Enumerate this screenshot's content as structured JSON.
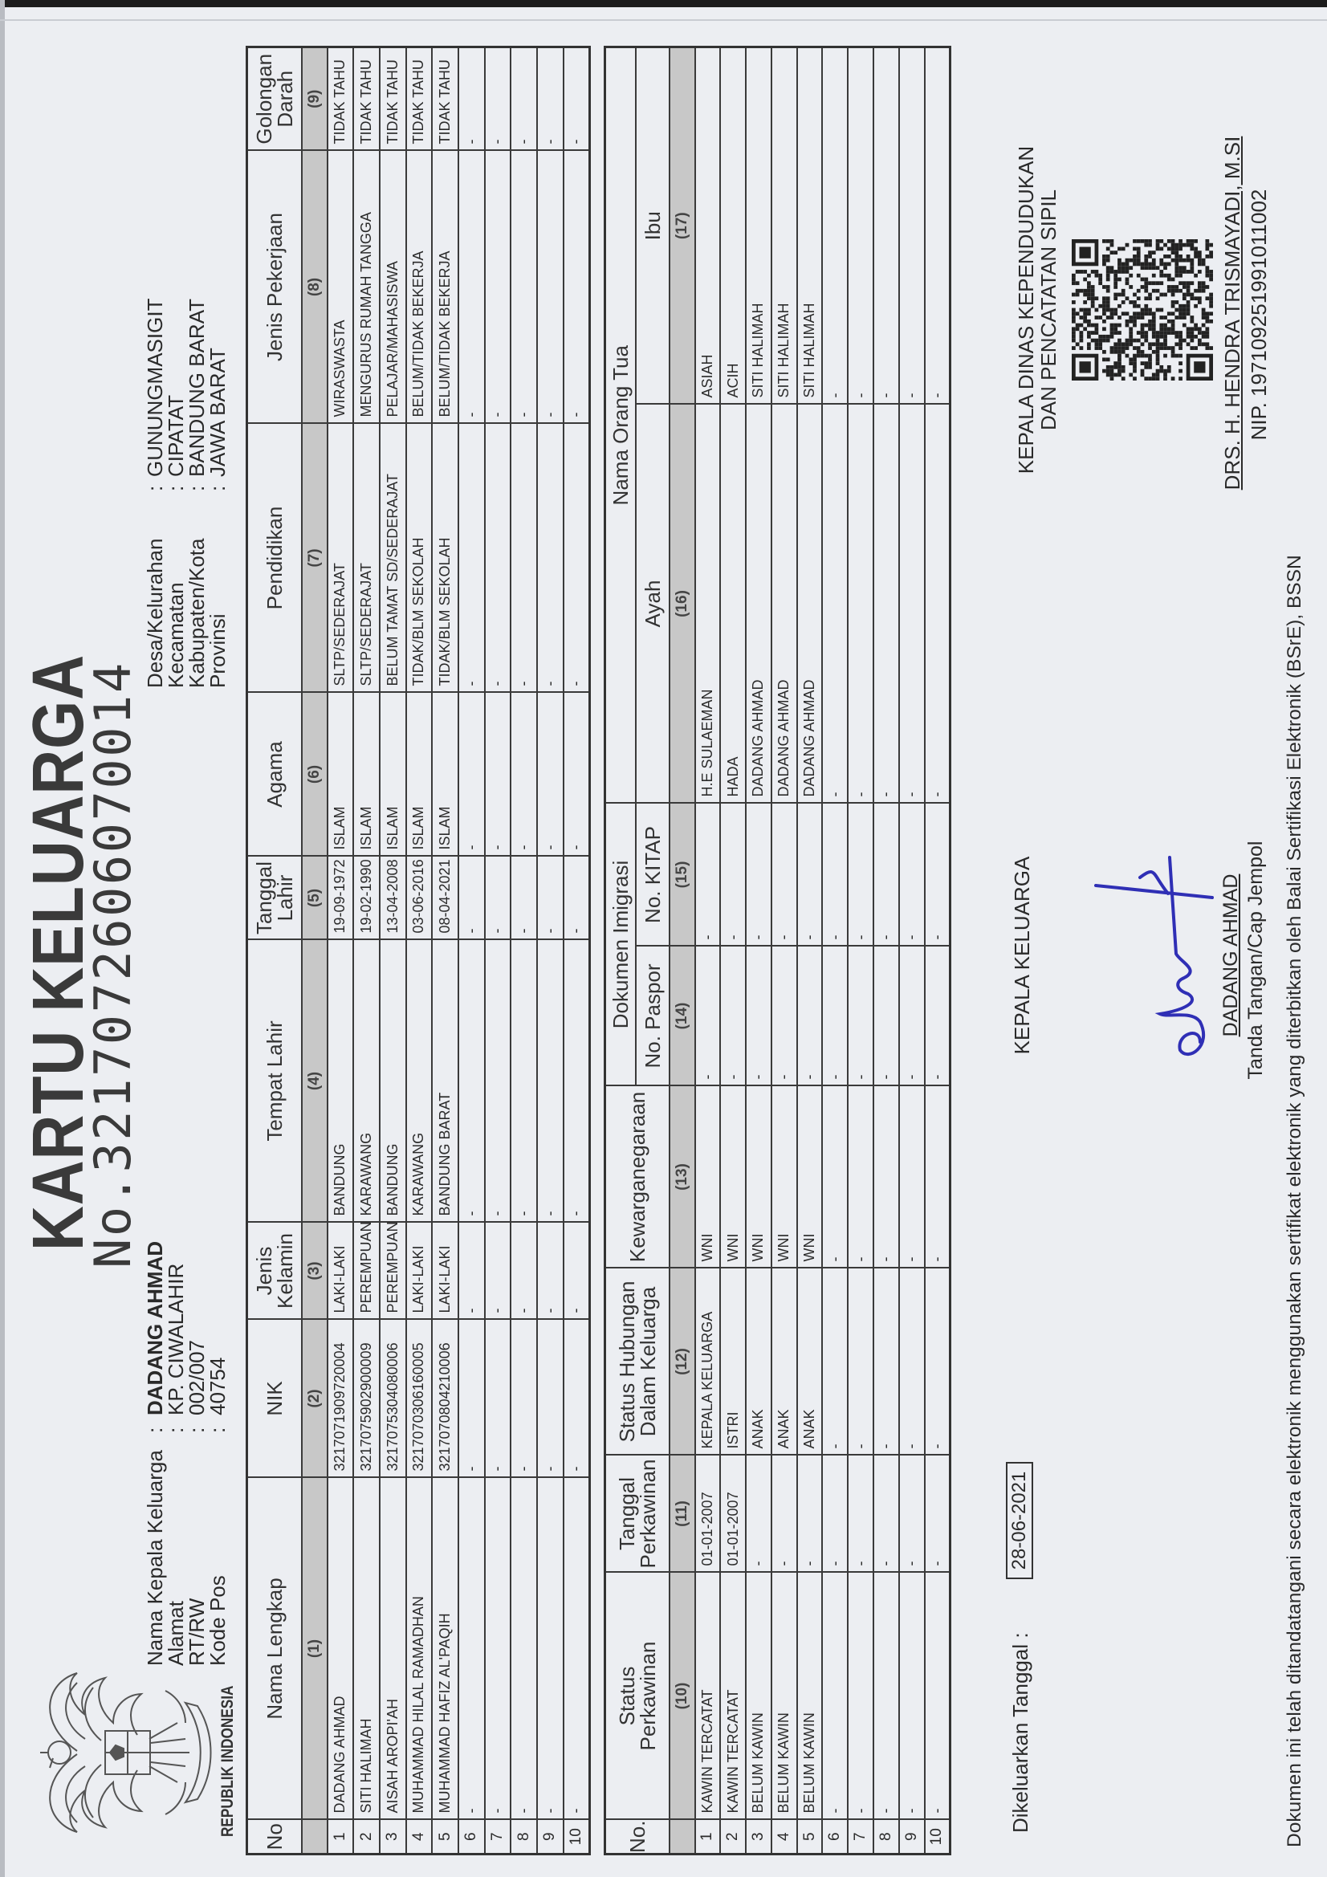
{
  "header": {
    "republik": "REPUBLIK INDONESIA",
    "title": "KARTU KELUARGA",
    "number": "No.3217072606070014"
  },
  "left_info": [
    {
      "label": "Nama Kepala Keluarga",
      "value": "DADANG AHMAD"
    },
    {
      "label": "Alamat",
      "value": "KP. CIWALAHIR"
    },
    {
      "label": "RT/RW",
      "value": "002/007"
    },
    {
      "label": "Kode Pos",
      "value": "40754"
    }
  ],
  "right_info": [
    {
      "label": "Desa/Kelurahan",
      "value": "GUNUNGMASIGIT"
    },
    {
      "label": "Kecamatan",
      "value": "CIPATAT"
    },
    {
      "label": "Kabupaten/Kota",
      "value": "BANDUNG BARAT"
    },
    {
      "label": "Provinsi",
      "value": "JAWA BARAT"
    }
  ],
  "colon": ":",
  "table1": {
    "headers": [
      "No",
      "Nama Lengkap",
      "NIK",
      "Jenis\nKelamin",
      "Tempat Lahir",
      "Tanggal\nLahir",
      "Agama",
      "Pendidikan",
      "Jenis Pekerjaan",
      "Golongan\nDarah"
    ],
    "col_numbers": [
      "",
      "(1)",
      "(2)",
      "(3)",
      "(4)",
      "(5)",
      "(6)",
      "(7)",
      "(8)",
      "(9)"
    ],
    "rows": [
      [
        "1",
        "DADANG AHMAD",
        "3217071909720004",
        "LAKI-LAKI",
        "BANDUNG",
        "19-09-1972",
        "ISLAM",
        "SLTP/SEDERAJAT",
        "WIRASWASTA",
        "TIDAK TAHU"
      ],
      [
        "2",
        "SITI HALIMAH",
        "3217075902900009",
        "PEREMPUAN",
        "KARAWANG",
        "19-02-1990",
        "ISLAM",
        "SLTP/SEDERAJAT",
        "MENGURUS RUMAH TANGGA",
        "TIDAK TAHU"
      ],
      [
        "3",
        "AISAH AROPI'AH",
        "3217075304080006",
        "PEREMPUAN",
        "BANDUNG",
        "13-04-2008",
        "ISLAM",
        "BELUM TAMAT SD/SEDERAJAT",
        "PELAJAR/MAHASISWA",
        "TIDAK TAHU"
      ],
      [
        "4",
        "MUHAMMAD HILAL RAMADHAN",
        "3217070306160005",
        "LAKI-LAKI",
        "KARAWANG",
        "03-06-2016",
        "ISLAM",
        "TIDAK/BLM SEKOLAH",
        "BELUM/TIDAK BEKERJA",
        "TIDAK TAHU"
      ],
      [
        "5",
        "MUHAMMAD HAFIZ AL'PAQIH",
        "3217070804210006",
        "LAKI-LAKI",
        "BANDUNG BARAT",
        "08-04-2021",
        "ISLAM",
        "TIDAK/BLM SEKOLAH",
        "BELUM/TIDAK BEKERJA",
        "TIDAK TAHU"
      ],
      [
        "6",
        "-",
        "-",
        "-",
        "-",
        "-",
        "-",
        "-",
        "-",
        "-"
      ],
      [
        "7",
        "-",
        "-",
        "-",
        "-",
        "-",
        "-",
        "-",
        "-",
        "-"
      ],
      [
        "8",
        "-",
        "-",
        "-",
        "-",
        "-",
        "-",
        "-",
        "-",
        "-"
      ],
      [
        "9",
        "-",
        "-",
        "-",
        "-",
        "-",
        "-",
        "-",
        "-",
        "-"
      ],
      [
        "10",
        "-",
        "-",
        "-",
        "-",
        "-",
        "-",
        "-",
        "-",
        "-"
      ]
    ]
  },
  "table2": {
    "headers": {
      "no": "No.",
      "status_perkawinan": "Status\nPerkawinan",
      "tanggal_perkawinan": "Tanggal\nPerkawinan",
      "status_hubungan": "Status Hubungan\nDalam Keluarga",
      "kewarganegaraan": "Kewarganegaraan",
      "dokumen_imigrasi": "Dokumen Imigrasi",
      "no_paspor": "No. Paspor",
      "no_kitap": "No. KITAP",
      "nama_orang_tua": "Nama Orang Tua",
      "ayah": "Ayah",
      "ibu": "Ibu"
    },
    "col_numbers": [
      "",
      "(10)",
      "(11)",
      "(12)",
      "(13)",
      "(14)",
      "(15)",
      "(16)",
      "(17)"
    ],
    "rows": [
      [
        "1",
        "KAWIN TERCATAT",
        "01-01-2007",
        "KEPALA KELUARGA",
        "WNI",
        "-",
        "-",
        "H.E SULAEMAN",
        "ASIAH"
      ],
      [
        "2",
        "KAWIN TERCATAT",
        "01-01-2007",
        "ISTRI",
        "WNI",
        "-",
        "-",
        "HADA",
        "ACIH"
      ],
      [
        "3",
        "BELUM KAWIN",
        "-",
        "ANAK",
        "WNI",
        "-",
        "-",
        "DADANG AHMAD",
        "SITI HALIMAH"
      ],
      [
        "4",
        "BELUM KAWIN",
        "-",
        "ANAK",
        "WNI",
        "-",
        "-",
        "DADANG AHMAD",
        "SITI HALIMAH"
      ],
      [
        "5",
        "BELUM KAWIN",
        "-",
        "ANAK",
        "WNI",
        "-",
        "-",
        "DADANG AHMAD",
        "SITI HALIMAH"
      ],
      [
        "6",
        "-",
        "-",
        "-",
        "-",
        "-",
        "-",
        "-",
        "-"
      ],
      [
        "7",
        "-",
        "-",
        "-",
        "-",
        "-",
        "-",
        "-",
        "-"
      ],
      [
        "8",
        "-",
        "-",
        "-",
        "-",
        "-",
        "-",
        "-",
        "-"
      ],
      [
        "9",
        "-",
        "-",
        "-",
        "-",
        "-",
        "-",
        "-",
        "-"
      ],
      [
        "10",
        "-",
        "-",
        "-",
        "-",
        "-",
        "-",
        "-",
        "-"
      ]
    ]
  },
  "issued": {
    "label": "Dikeluarkan Tanggal   :",
    "date": "28-06-2021"
  },
  "kepala_keluarga": {
    "label": "KEPALA KELUARGA",
    "name": "DADANG AHMAD",
    "note": "Tanda Tangan/Cap Jempol"
  },
  "official": {
    "title_line1": "KEPALA DINAS KEPENDUDUKAN",
    "title_line2": "DAN PENCATATAN SIPIL",
    "name": "DRS. H. HENDRA TRISMAYADI, M.SI",
    "nip": "NIP. 197109251991011002"
  },
  "footer": "Dokumen ini telah ditandatangani secara elektronik menggunakan sertifikat elektronik yang diterbitkan oleh Balai Sertifikasi Elektronik (BSrE), BSSN",
  "colors": {
    "paper": "#eceef2",
    "ink": "#2a2a2a",
    "signature": "#2f2fb5",
    "header_fill": "#c8c8c8"
  },
  "icons": {
    "emblem": "garuda-pancasila-emblem",
    "qr": "qr-code"
  }
}
